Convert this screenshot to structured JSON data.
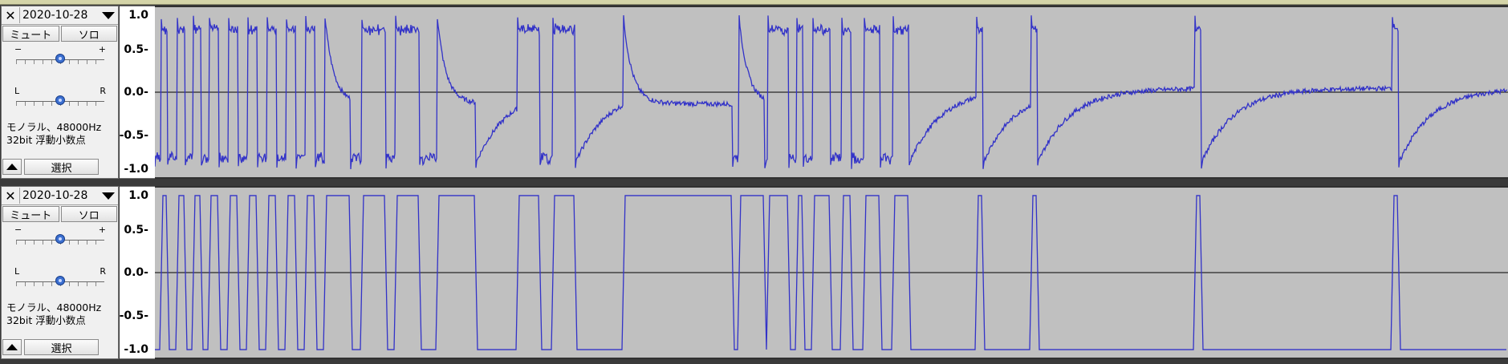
{
  "colors": {
    "waveform": "#3232c8",
    "background": "#c0c0c0",
    "zero_line": "#000000"
  },
  "tracks": [
    {
      "name": "2020-10-28",
      "close_icon": "✕",
      "mute_label": "ミュート",
      "solo_label": "ソロ",
      "gain_minus": "−",
      "gain_plus": "+",
      "gain_level": 0.5,
      "pan_left": "L",
      "pan_right": "R",
      "pan_level": 0.5,
      "format_line1": "モノラル、48000Hz",
      "format_line2": "32bit 浮動小数点",
      "select_label": "選択",
      "scale": [
        "1.0",
        "0.5-",
        "0.0-",
        "-0.5-",
        "-1.0"
      ]
    },
    {
      "name": "2020-10-28",
      "close_icon": "✕",
      "mute_label": "ミュート",
      "solo_label": "ソロ",
      "gain_minus": "−",
      "gain_plus": "+",
      "gain_level": 0.5,
      "pan_left": "L",
      "pan_right": "R",
      "pan_level": 0.5,
      "format_line1": "モノラル、48000Hz",
      "format_line2": "32bit 浮動小数点",
      "select_label": "選択",
      "scale": [
        "1.0",
        "0.5-",
        "0.0-",
        "-0.5-",
        "-1.0"
      ]
    }
  ]
}
